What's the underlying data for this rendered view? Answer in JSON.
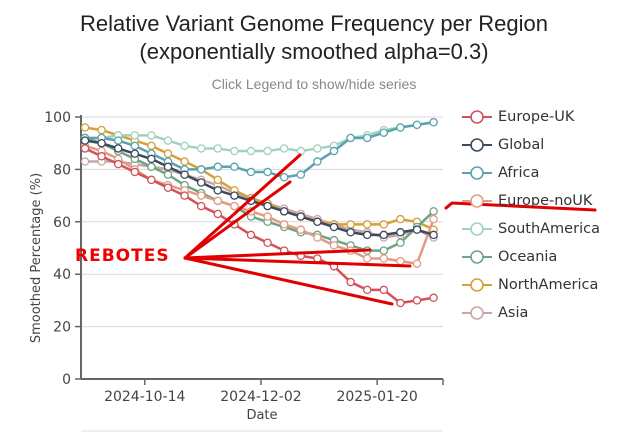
{
  "title_line1": "Relative Variant Genome Frequency per Region",
  "title_line2": "(exponentially smoothed alpha=0.3)",
  "subtitle": "Click Legend to show/hide series",
  "annotation": {
    "text": "REBOTES",
    "color": "#e00000"
  },
  "chart_data": {
    "type": "line",
    "title": "Relative Variant Genome Frequency per Region (exponentially smoothed alpha=0.3)",
    "xlabel": "Date",
    "ylabel": "Smoothed Percentage (%)",
    "ylim": [
      0,
      100
    ],
    "yticks": [
      0,
      20,
      40,
      60,
      80,
      100
    ],
    "xticks": [
      {
        "label": "2024-10-14",
        "index": 3.6
      },
      {
        "label": "2024-12-02",
        "index": 10.6
      },
      {
        "label": "2025-01-20",
        "index": 17.6
      }
    ],
    "grid": true,
    "legend_position": "right",
    "x_count": 22,
    "series": [
      {
        "name": "Europe-UK",
        "color": "#d0525a",
        "values": [
          88,
          85,
          82,
          79,
          76,
          73,
          70,
          66,
          63,
          59,
          55,
          52,
          49,
          47,
          46,
          43,
          37,
          34,
          34,
          29,
          30,
          31
        ]
      },
      {
        "name": "Global",
        "color": "#3d4a5c",
        "values": [
          91,
          90,
          88,
          86,
          84,
          81,
          78,
          75,
          72,
          70,
          68,
          66,
          64,
          62,
          60,
          58,
          56,
          55,
          55,
          56,
          57,
          55
        ]
      },
      {
        "name": "Africa",
        "color": "#5aa3ad",
        "values": [
          92,
          92,
          91,
          89,
          86,
          83,
          80,
          80,
          81,
          81,
          79,
          79,
          77,
          78,
          83,
          87,
          92,
          92,
          94,
          96,
          97,
          98
        ]
      },
      {
        "name": "Europe-noUK",
        "color": "#e29b84",
        "values": [
          89,
          87,
          84,
          80,
          76,
          74,
          72,
          70,
          68,
          66,
          64,
          62,
          59,
          57,
          54,
          51,
          49,
          46,
          46,
          45,
          44,
          61
        ]
      },
      {
        "name": "SouthAmerica",
        "color": "#9fd3bd",
        "values": [
          92,
          92,
          93,
          93,
          93,
          91,
          89,
          88,
          88,
          87,
          87,
          87,
          88,
          87,
          88,
          89,
          92,
          93,
          95,
          96,
          97,
          98
        ]
      },
      {
        "name": "Oceania",
        "color": "#6fa383",
        "values": [
          92,
          90,
          87,
          84,
          81,
          78,
          74,
          71,
          68,
          66,
          62,
          60,
          58,
          56,
          55,
          53,
          51,
          49,
          49,
          52,
          58,
          64
        ]
      },
      {
        "name": "NorthAmerica",
        "color": "#d4a03a",
        "values": [
          96,
          95,
          93,
          91,
          89,
          86,
          83,
          80,
          76,
          72,
          69,
          67,
          64,
          62,
          60,
          59,
          59,
          59,
          59,
          61,
          60,
          57
        ]
      },
      {
        "name": "Asia",
        "color": "#c9a6a6",
        "values": [
          83,
          83,
          83,
          82,
          81,
          80,
          78,
          76,
          74,
          71,
          69,
          67,
          65,
          63,
          61,
          59,
          57,
          56,
          54,
          55,
          57,
          54
        ]
      }
    ]
  },
  "legend": [
    {
      "label": "Europe-UK",
      "color": "#d0525a"
    },
    {
      "label": "Global",
      "color": "#3d4a5c"
    },
    {
      "label": "Africa",
      "color": "#5aa3ad"
    },
    {
      "label": "Europe-noUK",
      "color": "#e29b84"
    },
    {
      "label": "SouthAmerica",
      "color": "#9fd3bd"
    },
    {
      "label": "Oceania",
      "color": "#6fa383"
    },
    {
      "label": "NorthAmerica",
      "color": "#d4a03a"
    },
    {
      "label": "Asia",
      "color": "#c9a6a6"
    }
  ]
}
